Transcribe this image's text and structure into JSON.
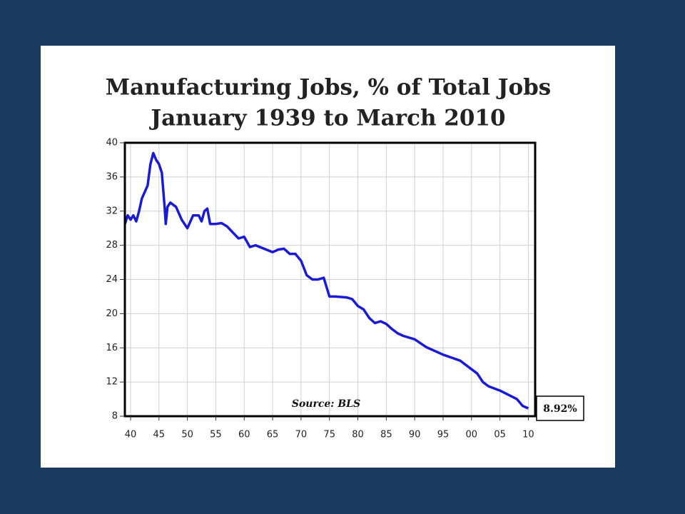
{
  "chart_data": {
    "type": "line",
    "title": "Manufacturing Jobs, % of Total Jobs",
    "subtitle": "January 1939 to March 2010",
    "annotation": "Source: BLS",
    "end_label": {
      "value": 8.92,
      "label": "8.92%"
    },
    "x": [
      1939,
      1939.5,
      1940,
      1940.5,
      1941,
      1941.5,
      1942,
      1943,
      1943.5,
      1944,
      1944.5,
      1945,
      1945.5,
      1946,
      1946.2,
      1946.5,
      1947,
      1948,
      1949,
      1950,
      1951,
      1952,
      1952.5,
      1953,
      1953.5,
      1954,
      1955,
      1956,
      1957,
      1958,
      1959,
      1960,
      1961,
      1962,
      1965,
      1966,
      1967,
      1968,
      1969,
      1970,
      1971,
      1972,
      1973,
      1974,
      1975,
      1976,
      1978,
      1979,
      1980,
      1981,
      1982,
      1983,
      1984,
      1985,
      1986,
      1987,
      1988,
      1990,
      1992,
      1995,
      1998,
      2000,
      2001,
      2002,
      2003,
      2005,
      2008,
      2009,
      2010
    ],
    "series": [
      {
        "name": "Manufacturing Jobs",
        "color": "#1a1ad6",
        "values": [
          30.5,
          31.5,
          31,
          31.5,
          30.8,
          32,
          33.5,
          35,
          37.5,
          38.8,
          38,
          37.5,
          36.5,
          32.5,
          30.5,
          32.5,
          33,
          32.5,
          31,
          30,
          31.5,
          31.5,
          30.8,
          32,
          32.3,
          30.5,
          30.5,
          30.6,
          30.2,
          29.5,
          28.8,
          29,
          27.8,
          28,
          27.2,
          27.5,
          27.6,
          27,
          27,
          26.2,
          24.5,
          24,
          24,
          24.2,
          22,
          22,
          21.9,
          21.7,
          20.9,
          20.5,
          19.5,
          18.9,
          19.1,
          18.8,
          18.2,
          17.7,
          17.4,
          17,
          16.1,
          15.2,
          14.5,
          13.5,
          13,
          12,
          11.5,
          11,
          10,
          9.2,
          8.92
        ]
      }
    ],
    "xlim": [
      1939,
      2011.2
    ],
    "xticks": [
      {
        "value": 1940,
        "label": "40"
      },
      {
        "value": 1945,
        "label": "45"
      },
      {
        "value": 1950,
        "label": "50"
      },
      {
        "value": 1955,
        "label": "55"
      },
      {
        "value": 1960,
        "label": "60"
      },
      {
        "value": 1965,
        "label": "65"
      },
      {
        "value": 1970,
        "label": "70"
      },
      {
        "value": 1975,
        "label": "75"
      },
      {
        "value": 1980,
        "label": "80"
      },
      {
        "value": 1985,
        "label": "85"
      },
      {
        "value": 1990,
        "label": "90"
      },
      {
        "value": 1995,
        "label": "95"
      },
      {
        "value": 2000,
        "label": "00"
      },
      {
        "value": 2005,
        "label": "05"
      },
      {
        "value": 2010,
        "label": "10"
      }
    ],
    "ylim": [
      8,
      40
    ],
    "yticks": [
      8,
      12,
      16,
      20,
      24,
      28,
      32,
      36,
      40
    ],
    "grid": true
  }
}
